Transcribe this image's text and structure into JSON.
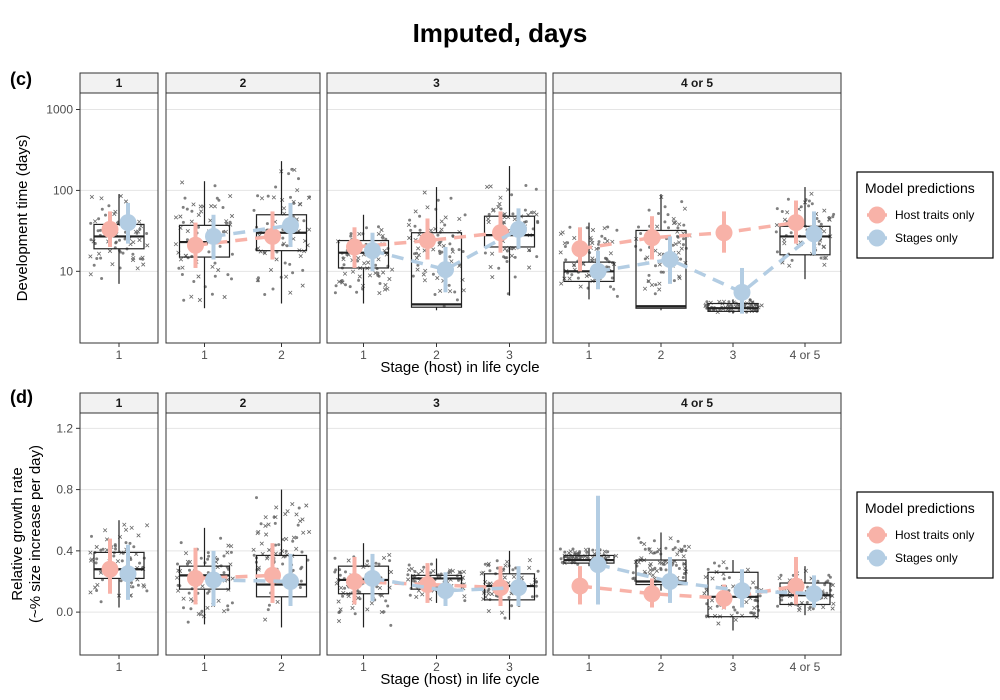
{
  "title": "Imputed, days",
  "legend": {
    "title": "Model predictions",
    "items": [
      {
        "label": "Host traits only",
        "color": "#F8B2A8"
      },
      {
        "label": "Stages only",
        "color": "#B3CDE3"
      }
    ]
  },
  "colors": {
    "host": "#F8B2A8",
    "stage": "#B3CDE3",
    "box": "#222222",
    "points": "#333333"
  },
  "chart_data": [
    {
      "panel_label": "(c)",
      "type": "box",
      "ylabel": "Development time (days)",
      "xlabel": "Stage (host) in life cycle",
      "yscale": "log10",
      "ylim": [
        1.3,
        1600
      ],
      "yticks": [
        10,
        100,
        1000
      ],
      "ytick_labels": [
        "10",
        "100",
        "1000"
      ],
      "grid": true,
      "facets": [
        {
          "label": "1",
          "stages": [
            {
              "x": "1",
              "box": {
                "q1": 19,
                "median": 27,
                "q3": 38,
                "lo": 7,
                "hi": 90
              },
              "host": {
                "y": 33,
                "lo": 20,
                "hi": 55
              },
              "stage": {
                "y": 40,
                "lo": 22,
                "hi": 70
              }
            }
          ]
        },
        {
          "label": "2",
          "stages": [
            {
              "x": "1",
              "box": {
                "q1": 15,
                "median": 23,
                "q3": 37,
                "lo": 3.5,
                "hi": 130
              },
              "host": {
                "y": 21,
                "lo": 11,
                "hi": 40
              },
              "stage": {
                "y": 27,
                "lo": 14,
                "hi": 50
              }
            },
            {
              "x": "2",
              "box": {
                "q1": 18,
                "median": 30,
                "q3": 50,
                "lo": 4,
                "hi": 230
              },
              "host": {
                "y": 27,
                "lo": 14,
                "hi": 55
              },
              "stage": {
                "y": 37,
                "lo": 20,
                "hi": 70
              }
            }
          ]
        },
        {
          "label": "3",
          "stages": [
            {
              "x": "1",
              "box": {
                "q1": 11,
                "median": 17,
                "q3": 24,
                "lo": 4,
                "hi": 50
              },
              "host": {
                "y": 20,
                "lo": 11,
                "hi": 35
              },
              "stage": {
                "y": 18,
                "lo": 10,
                "hi": 30
              }
            },
            {
              "x": "2",
              "box": {
                "q1": 3.6,
                "median": 3.9,
                "q3": 30,
                "lo": 3.3,
                "hi": 110
              },
              "host": {
                "y": 24,
                "lo": 14,
                "hi": 45
              },
              "stage": {
                "y": 10.5,
                "lo": 5.5,
                "hi": 20
              }
            },
            {
              "x": "3",
              "box": {
                "q1": 20,
                "median": 28,
                "q3": 48,
                "lo": 5,
                "hi": 200
              },
              "host": {
                "y": 30,
                "lo": 17,
                "hi": 55
              },
              "stage": {
                "y": 33,
                "lo": 19,
                "hi": 60
              }
            }
          ]
        },
        {
          "label": "4 or 5",
          "stages": [
            {
              "x": "1",
              "box": {
                "q1": 7.5,
                "median": 10,
                "q3": 13,
                "lo": 4.5,
                "hi": 40
              },
              "host": {
                "y": 19,
                "lo": 10,
                "hi": 35
              },
              "stage": {
                "y": 10,
                "lo": 6,
                "hi": 18
              }
            },
            {
              "x": "2",
              "box": {
                "q1": 3.5,
                "median": 3.7,
                "q3": 32,
                "lo": 3.3,
                "hi": 90
              },
              "host": {
                "y": 26,
                "lo": 14,
                "hi": 48
              },
              "stage": {
                "y": 14,
                "lo": 7,
                "hi": 27
              }
            },
            {
              "x": "3",
              "box": {
                "q1": 3.2,
                "median": 3.5,
                "q3": 4,
                "lo": 3,
                "hi": 4.5
              },
              "host": {
                "y": 30,
                "lo": 17,
                "hi": 55
              },
              "stage": {
                "y": 5.5,
                "lo": 3,
                "hi": 11
              }
            },
            {
              "x": "4 or 5",
              "box": {
                "q1": 16,
                "median": 27,
                "q3": 36,
                "lo": 8,
                "hi": 110
              },
              "host": {
                "y": 40,
                "lo": 22,
                "hi": 75
              },
              "stage": {
                "y": 29,
                "lo": 16,
                "hi": 55
              }
            }
          ]
        }
      ]
    },
    {
      "panel_label": "(d)",
      "type": "box",
      "ylabel": "Relative growth rate\n(~% size increase per day)",
      "xlabel": "Stage (host) in life cycle",
      "yscale": "linear",
      "ylim": [
        -0.28,
        1.3
      ],
      "yticks": [
        0,
        0.4,
        0.8,
        1.2
      ],
      "ytick_labels": [
        "0.0",
        "0.4",
        "0.8",
        "1.2"
      ],
      "grid": true,
      "facets": [
        {
          "label": "1",
          "stages": [
            {
              "x": "1",
              "box": {
                "q1": 0.22,
                "median": 0.28,
                "q3": 0.39,
                "lo": 0.03,
                "hi": 0.6
              },
              "host": {
                "y": 0.28,
                "lo": 0.12,
                "hi": 0.48
              },
              "stage": {
                "y": 0.25,
                "lo": 0.08,
                "hi": 0.44
              }
            }
          ]
        },
        {
          "label": "2",
          "stages": [
            {
              "x": "1",
              "box": {
                "q1": 0.15,
                "median": 0.24,
                "q3": 0.3,
                "lo": -0.08,
                "hi": 0.55
              },
              "host": {
                "y": 0.22,
                "lo": 0.05,
                "hi": 0.42
              },
              "stage": {
                "y": 0.21,
                "lo": 0.04,
                "hi": 0.4
              }
            },
            {
              "x": "2",
              "box": {
                "q1": 0.1,
                "median": 0.18,
                "q3": 0.37,
                "lo": -0.1,
                "hi": 0.8
              },
              "host": {
                "y": 0.24,
                "lo": 0.06,
                "hi": 0.45
              },
              "stage": {
                "y": 0.2,
                "lo": 0.04,
                "hi": 0.38
              }
            }
          ]
        },
        {
          "label": "3",
          "stages": [
            {
              "x": "1",
              "box": {
                "q1": 0.12,
                "median": 0.21,
                "q3": 0.3,
                "lo": -0.1,
                "hi": 0.45
              },
              "host": {
                "y": 0.2,
                "lo": 0.05,
                "hi": 0.36
              },
              "stage": {
                "y": 0.22,
                "lo": 0.07,
                "hi": 0.38
              }
            },
            {
              "x": "2",
              "box": {
                "q1": 0.15,
                "median": 0.22,
                "q3": 0.24,
                "lo": 0.06,
                "hi": 0.35
              },
              "host": {
                "y": 0.18,
                "lo": 0.06,
                "hi": 0.32
              },
              "stage": {
                "y": 0.14,
                "lo": 0.04,
                "hi": 0.26
              }
            },
            {
              "x": "3",
              "box": {
                "q1": 0.08,
                "median": 0.17,
                "q3": 0.25,
                "lo": -0.05,
                "hi": 0.4
              },
              "host": {
                "y": 0.16,
                "lo": 0.04,
                "hi": 0.3
              },
              "stage": {
                "y": 0.16,
                "lo": 0.04,
                "hi": 0.3
              }
            }
          ]
        },
        {
          "label": "4 or 5",
          "stages": [
            {
              "x": "1",
              "box": {
                "q1": 0.32,
                "median": 0.34,
                "q3": 0.37,
                "lo": 0.3,
                "hi": 0.42
              },
              "host": {
                "y": 0.17,
                "lo": 0.05,
                "hi": 0.3
              },
              "stage": {
                "y": 0.31,
                "lo": 0.05,
                "hi": 0.76
              }
            },
            {
              "x": "2",
              "box": {
                "q1": 0.18,
                "median": 0.2,
                "q3": 0.34,
                "lo": 0.14,
                "hi": 0.52
              },
              "host": {
                "y": 0.12,
                "lo": 0.03,
                "hi": 0.22
              },
              "stage": {
                "y": 0.2,
                "lo": 0.06,
                "hi": 0.36
              }
            },
            {
              "x": "3",
              "box": {
                "q1": -0.03,
                "median": 0.1,
                "q3": 0.26,
                "lo": -0.12,
                "hi": 0.34
              },
              "host": {
                "y": 0.09,
                "lo": 0.02,
                "hi": 0.18
              },
              "stage": {
                "y": 0.14,
                "lo": 0.03,
                "hi": 0.28
              }
            },
            {
              "x": "4 or 5",
              "box": {
                "q1": 0.05,
                "median": 0.11,
                "q3": 0.19,
                "lo": -0.02,
                "hi": 0.3
              },
              "host": {
                "y": 0.17,
                "lo": 0.05,
                "hi": 0.36
              },
              "stage": {
                "y": 0.12,
                "lo": 0.03,
                "hi": 0.24
              }
            }
          ]
        }
      ]
    }
  ]
}
